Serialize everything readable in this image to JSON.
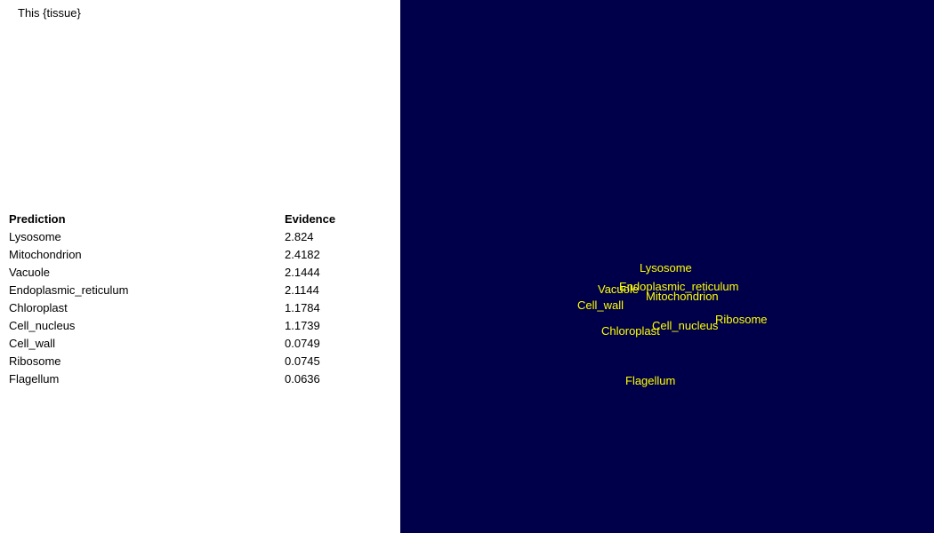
{
  "prompt_text": "This {tissue}",
  "table": {
    "headers": [
      "Prediction",
      "Evidence"
    ],
    "rows": [
      {
        "label": "Lysosome",
        "value": "2.824"
      },
      {
        "label": "Mitochondrion",
        "value": "2.4182"
      },
      {
        "label": "Vacuole",
        "value": "2.1444"
      },
      {
        "label": "Endoplasmic_reticulum",
        "value": "2.1144"
      },
      {
        "label": "Chloroplast",
        "value": "1.1784"
      },
      {
        "label": "Cell_nucleus",
        "value": "1.1739"
      },
      {
        "label": "Cell_wall",
        "value": "0.0749"
      },
      {
        "label": "Ribosome",
        "value": "0.0745"
      },
      {
        "label": "Flagellum",
        "value": "0.0636"
      }
    ]
  },
  "embedding": {
    "labels": [
      "Lysosome",
      "Endoplasmic_reticulum",
      "Vacuole",
      "Mitochondrion",
      "Cell_wall",
      "Ribosome",
      "Cell_nucleus",
      "Chloroplast",
      "Flagellum"
    ]
  },
  "colors": {
    "viz_background": "#00004a",
    "label": "#ffff00"
  }
}
